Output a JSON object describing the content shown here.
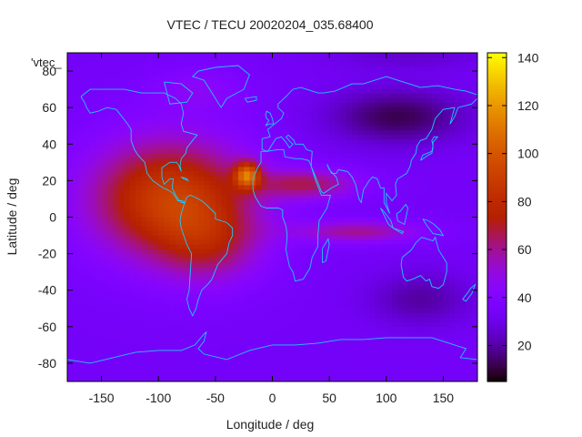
{
  "chart_data": {
    "type": "heatmap",
    "title": "VTEC / TECU 20020204_035.68400",
    "xlabel": "Longitude / deg",
    "ylabel": "Latitude / deg",
    "xlim": [
      -180,
      180
    ],
    "ylim": [
      -90,
      90
    ],
    "xticks": [
      -150,
      -100,
      -50,
      0,
      50,
      100,
      150
    ],
    "yticks": [
      -80,
      -60,
      -40,
      -20,
      0,
      20,
      40,
      60,
      80
    ],
    "colorbar": {
      "min": 5,
      "max": 142,
      "ticks": [
        20,
        40,
        60,
        80,
        100,
        120,
        140
      ],
      "palette": "black-purple-red-orange-yellow"
    },
    "legend": {
      "position": "top-left",
      "entries": [
        "'vtec_"
      ]
    },
    "overlay": "coastlines",
    "grid": false,
    "background_level": 34,
    "features": [
      {
        "lon": -90,
        "lat": 10,
        "sx": 70,
        "sy": 32,
        "amp": 56
      },
      {
        "lon": -55,
        "lat": -15,
        "sx": 45,
        "sy": 22,
        "amp": 22
      },
      {
        "lon": 30,
        "lat": 18,
        "sx": 45,
        "sy": 8,
        "amp": 30
      },
      {
        "lon": 75,
        "lat": -8,
        "sx": 55,
        "sy": 6,
        "amp": 26
      },
      {
        "lon": -22,
        "lat": 23,
        "sx": 11,
        "sy": 7,
        "amp": 58
      },
      {
        "lon": -65,
        "lat": 70,
        "sx": 40,
        "sy": 12,
        "amp": 10
      },
      {
        "lon": 110,
        "lat": 55,
        "sx": 60,
        "sy": 15,
        "amp": -22
      },
      {
        "lon": 130,
        "lat": -45,
        "sx": 45,
        "sy": 15,
        "amp": -14
      },
      {
        "lon": 120,
        "lat": 88,
        "sx": 70,
        "sy": 8,
        "amp": -8
      }
    ],
    "coastlines": [
      [
        [
          -168,
          66
        ],
        [
          -160,
          70
        ],
        [
          -145,
          70
        ],
        [
          -130,
          70
        ],
        [
          -115,
          68
        ],
        [
          -95,
          68
        ],
        [
          -85,
          65
        ],
        [
          -80,
          62
        ],
        [
          -78,
          57
        ],
        [
          -80,
          51
        ],
        [
          -78,
          47
        ],
        [
          -66,
          45
        ],
        [
          -70,
          42
        ],
        [
          -75,
          38
        ],
        [
          -76,
          35
        ],
        [
          -80,
          32
        ],
        [
          -81,
          28
        ],
        [
          -80,
          25
        ],
        [
          -82,
          28
        ],
        [
          -84,
          30
        ],
        [
          -90,
          30
        ],
        [
          -97,
          27
        ],
        [
          -97,
          22
        ],
        [
          -95,
          18
        ],
        [
          -90,
          21
        ],
        [
          -87,
          21
        ],
        [
          -88,
          16
        ],
        [
          -84,
          11
        ],
        [
          -80,
          8
        ],
        [
          -77,
          8
        ],
        [
          -79,
          9
        ],
        [
          -83,
          9
        ],
        [
          -87,
          13
        ],
        [
          -92,
          15
        ],
        [
          -96,
          16
        ],
        [
          -105,
          20
        ],
        [
          -110,
          24
        ],
        [
          -112,
          30
        ],
        [
          -115,
          32
        ],
        [
          -118,
          34
        ],
        [
          -121,
          37
        ],
        [
          -124,
          42
        ],
        [
          -124,
          48
        ],
        [
          -127,
          51
        ],
        [
          -132,
          55
        ],
        [
          -137,
          59
        ],
        [
          -145,
          60
        ],
        [
          -153,
          58
        ],
        [
          -160,
          57
        ],
        [
          -163,
          60
        ],
        [
          -165,
          63
        ],
        [
          -168,
          66
        ]
      ],
      [
        [
          -77,
          8
        ],
        [
          -75,
          11
        ],
        [
          -72,
          12
        ],
        [
          -65,
          10
        ],
        [
          -60,
          8
        ],
        [
          -55,
          5
        ],
        [
          -50,
          2
        ],
        [
          -50,
          -1
        ],
        [
          -45,
          -2
        ],
        [
          -40,
          -3
        ],
        [
          -35,
          -6
        ],
        [
          -35,
          -10
        ],
        [
          -38,
          -14
        ],
        [
          -40,
          -20
        ],
        [
          -44,
          -23
        ],
        [
          -48,
          -26
        ],
        [
          -53,
          -34
        ],
        [
          -57,
          -37
        ],
        [
          -62,
          -40
        ],
        [
          -65,
          -45
        ],
        [
          -67,
          -50
        ],
        [
          -70,
          -54
        ],
        [
          -73,
          -50
        ],
        [
          -75,
          -45
        ],
        [
          -73,
          -40
        ],
        [
          -72,
          -30
        ],
        [
          -71,
          -20
        ],
        [
          -75,
          -15
        ],
        [
          -80,
          -6
        ],
        [
          -81,
          -2
        ],
        [
          -80,
          2
        ],
        [
          -77,
          8
        ]
      ],
      [
        [
          -45,
          60
        ],
        [
          -40,
          65
        ],
        [
          -25,
          70
        ],
        [
          -20,
          78
        ],
        [
          -30,
          83
        ],
        [
          -50,
          82
        ],
        [
          -65,
          80
        ],
        [
          -70,
          77
        ],
        [
          -60,
          75
        ],
        [
          -55,
          70
        ],
        [
          -50,
          65
        ],
        [
          -45,
          60
        ]
      ],
      [
        [
          -10,
          36
        ],
        [
          -5,
          36
        ],
        [
          5,
          37
        ],
        [
          10,
          37
        ],
        [
          11,
          33
        ],
        [
          20,
          32
        ],
        [
          25,
          32
        ],
        [
          32,
          31
        ],
        [
          34,
          28
        ],
        [
          38,
          20
        ],
        [
          43,
          12
        ],
        [
          51,
          12
        ],
        [
          48,
          5
        ],
        [
          41,
          -2
        ],
        [
          40,
          -10
        ],
        [
          40,
          -16
        ],
        [
          35,
          -22
        ],
        [
          33,
          -28
        ],
        [
          27,
          -34
        ],
        [
          20,
          -35
        ],
        [
          18,
          -30
        ],
        [
          15,
          -27
        ],
        [
          12,
          -18
        ],
        [
          13,
          -10
        ],
        [
          12,
          -5
        ],
        [
          9,
          0
        ],
        [
          9,
          4
        ],
        [
          5,
          5
        ],
        [
          -5,
          5
        ],
        [
          -10,
          6
        ],
        [
          -15,
          11
        ],
        [
          -17,
          15
        ],
        [
          -17,
          21
        ],
        [
          -13,
          27
        ],
        [
          -10,
          30
        ],
        [
          -10,
          36
        ]
      ],
      [
        [
          -9,
          37
        ],
        [
          -9,
          43
        ],
        [
          -2,
          44
        ],
        [
          -4,
          48
        ],
        [
          2,
          51
        ],
        [
          8,
          54
        ],
        [
          10,
          57
        ],
        [
          5,
          60
        ],
        [
          5,
          62
        ],
        [
          12,
          66
        ],
        [
          18,
          70
        ],
        [
          25,
          71
        ],
        [
          40,
          68
        ],
        [
          45,
          68
        ],
        [
          55,
          69
        ],
        [
          70,
          73
        ],
        [
          80,
          73
        ],
        [
          100,
          77
        ],
        [
          115,
          74
        ],
        [
          130,
          71
        ],
        [
          145,
          72
        ],
        [
          160,
          70
        ],
        [
          170,
          69
        ],
        [
          180,
          67
        ]
      ],
      [
        [
          180,
          65
        ],
        [
          175,
          62
        ],
        [
          163,
          60
        ],
        [
          160,
          55
        ],
        [
          156,
          51
        ],
        [
          160,
          60
        ],
        [
          150,
          59
        ],
        [
          143,
          54
        ],
        [
          140,
          48
        ],
        [
          135,
          43
        ],
        [
          130,
          42
        ],
        [
          127,
          39
        ],
        [
          126,
          35
        ],
        [
          122,
          31
        ],
        [
          121,
          28
        ],
        [
          118,
          24
        ],
        [
          110,
          21
        ],
        [
          108,
          18
        ],
        [
          109,
          12
        ],
        [
          105,
          9
        ],
        [
          100,
          13
        ],
        [
          100,
          8
        ],
        [
          103,
          2
        ],
        [
          98,
          8
        ],
        [
          98,
          16
        ],
        [
          95,
          16
        ],
        [
          92,
          21
        ],
        [
          88,
          22
        ],
        [
          85,
          20
        ],
        [
          80,
          15
        ],
        [
          78,
          8
        ],
        [
          76,
          10
        ],
        [
          73,
          18
        ],
        [
          70,
          22
        ],
        [
          66,
          25
        ],
        [
          58,
          26
        ],
        [
          56,
          24
        ],
        [
          52,
          24
        ],
        [
          48,
          29
        ],
        [
          50,
          26
        ],
        [
          56,
          22
        ],
        [
          58,
          18
        ],
        [
          52,
          16
        ],
        [
          45,
          13
        ],
        [
          43,
          14
        ],
        [
          38,
          22
        ],
        [
          34,
          28
        ],
        [
          35,
          36
        ],
        [
          30,
          37
        ],
        [
          27,
          40
        ],
        [
          24,
          40
        ],
        [
          20,
          40
        ],
        [
          19,
          42
        ],
        [
          14,
          45
        ],
        [
          12,
          44
        ],
        [
          16,
          41
        ],
        [
          18,
          40
        ],
        [
          15,
          38
        ],
        [
          12,
          41
        ],
        [
          8,
          44
        ],
        [
          3,
          43
        ],
        [
          -4,
          36
        ],
        [
          -9,
          37
        ]
      ],
      [
        [
          114,
          -22
        ],
        [
          113,
          -26
        ],
        [
          115,
          -33
        ],
        [
          118,
          -35
        ],
        [
          123,
          -34
        ],
        [
          130,
          -32
        ],
        [
          135,
          -35
        ],
        [
          138,
          -34
        ],
        [
          140,
          -38
        ],
        [
          146,
          -39
        ],
        [
          150,
          -37
        ],
        [
          153,
          -30
        ],
        [
          153,
          -25
        ],
        [
          150,
          -22
        ],
        [
          146,
          -18
        ],
        [
          143,
          -11
        ],
        [
          141,
          -13
        ],
        [
          136,
          -12
        ],
        [
          131,
          -11
        ],
        [
          126,
          -14
        ],
        [
          122,
          -18
        ],
        [
          114,
          -22
        ]
      ],
      [
        [
          -180,
          -78
        ],
        [
          -160,
          -80
        ],
        [
          -140,
          -77
        ],
        [
          -120,
          -74
        ],
        [
          -100,
          -73
        ],
        [
          -80,
          -73
        ],
        [
          -68,
          -70
        ],
        [
          -60,
          -64
        ],
        [
          -58,
          -63
        ],
        [
          -60,
          -68
        ],
        [
          -65,
          -72
        ],
        [
          -60,
          -75
        ],
        [
          -40,
          -78
        ],
        [
          -20,
          -73
        ],
        [
          0,
          -70
        ],
        [
          20,
          -70
        ],
        [
          40,
          -69
        ],
        [
          60,
          -67
        ],
        [
          80,
          -67
        ],
        [
          100,
          -66
        ],
        [
          120,
          -66
        ],
        [
          140,
          -66
        ],
        [
          160,
          -70
        ],
        [
          170,
          -72
        ],
        [
          165,
          -77
        ],
        [
          180,
          -78
        ]
      ],
      [
        [
          167,
          -45
        ],
        [
          172,
          -41
        ],
        [
          174,
          -39
        ],
        [
          178,
          -37
        ],
        [
          175,
          -42
        ],
        [
          170,
          -46
        ],
        [
          167,
          -45
        ]
      ],
      [
        [
          130,
          31
        ],
        [
          132,
          34
        ],
        [
          136,
          35
        ],
        [
          140,
          36
        ],
        [
          141,
          39
        ],
        [
          140,
          42
        ],
        [
          142,
          44
        ],
        [
          145,
          44
        ],
        [
          141,
          41
        ],
        [
          141,
          38
        ],
        [
          140,
          35
        ],
        [
          137,
          34
        ],
        [
          130,
          31
        ]
      ],
      [
        [
          -6,
          50
        ],
        [
          -3,
          51
        ],
        [
          1,
          51
        ],
        [
          0,
          54
        ],
        [
          -2,
          57
        ],
        [
          -5,
          58
        ],
        [
          -6,
          56
        ],
        [
          -5,
          54
        ],
        [
          -3,
          53
        ],
        [
          -5,
          51
        ],
        [
          -6,
          50
        ]
      ],
      [
        [
          44,
          -25
        ],
        [
          47,
          -24
        ],
        [
          50,
          -15
        ],
        [
          49,
          -12
        ],
        [
          44,
          -17
        ],
        [
          44,
          -25
        ]
      ],
      [
        [
          95,
          5
        ],
        [
          98,
          3
        ],
        [
          104,
          -2
        ],
        [
          106,
          -6
        ],
        [
          102,
          -4
        ],
        [
          95,
          5
        ]
      ],
      [
        [
          106,
          -6
        ],
        [
          115,
          -8
        ],
        [
          114,
          -9
        ],
        [
          106,
          -6
        ]
      ],
      [
        [
          109,
          2
        ],
        [
          112,
          3
        ],
        [
          117,
          7
        ],
        [
          119,
          5
        ],
        [
          116,
          -4
        ],
        [
          110,
          -2
        ],
        [
          109,
          2
        ]
      ],
      [
        [
          132,
          -1
        ],
        [
          137,
          -2
        ],
        [
          142,
          -4
        ],
        [
          147,
          -7
        ],
        [
          150,
          -10
        ],
        [
          141,
          -9
        ],
        [
          135,
          -4
        ],
        [
          132,
          -1
        ]
      ],
      [
        [
          -80,
          22
        ],
        [
          -75,
          21
        ],
        [
          -74,
          20
        ],
        [
          -78,
          21
        ],
        [
          -80,
          22
        ]
      ],
      [
        [
          -24,
          65
        ],
        [
          -14,
          66
        ],
        [
          -14,
          64
        ],
        [
          -22,
          63
        ],
        [
          -24,
          65
        ]
      ],
      [
        [
          -95,
          74
        ],
        [
          -80,
          73
        ],
        [
          -70,
          68
        ],
        [
          -75,
          63
        ],
        [
          -90,
          62
        ],
        [
          -95,
          74
        ]
      ]
    ]
  }
}
